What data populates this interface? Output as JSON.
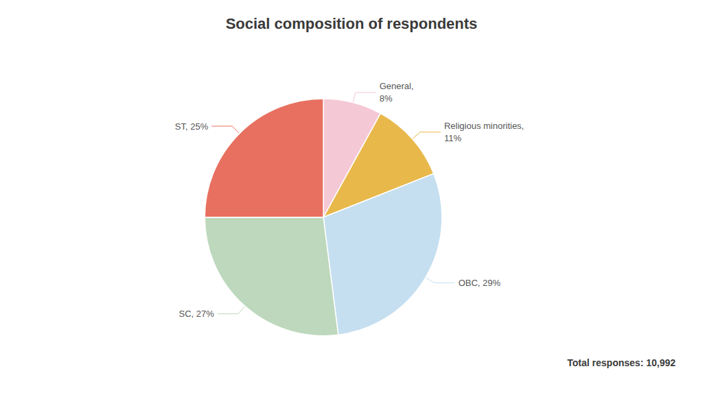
{
  "chart_data": {
    "type": "pie",
    "title": "Social composition of respondents",
    "categories": [
      "General",
      "Religious minorities",
      "OBC",
      "SC",
      "ST"
    ],
    "values": [
      8,
      11,
      29,
      27,
      25
    ],
    "value_labels": [
      "General,\n8%",
      "Religious minorities,\n11%",
      "OBC, 29%",
      "SC, 27%",
      "ST, 25%"
    ],
    "colors": [
      "#f5c8d5",
      "#e8b84b",
      "#c5dff0",
      "#bdd8bc",
      "#e87060"
    ],
    "data_labels": true,
    "annotation": "Total responses: 10,992"
  }
}
